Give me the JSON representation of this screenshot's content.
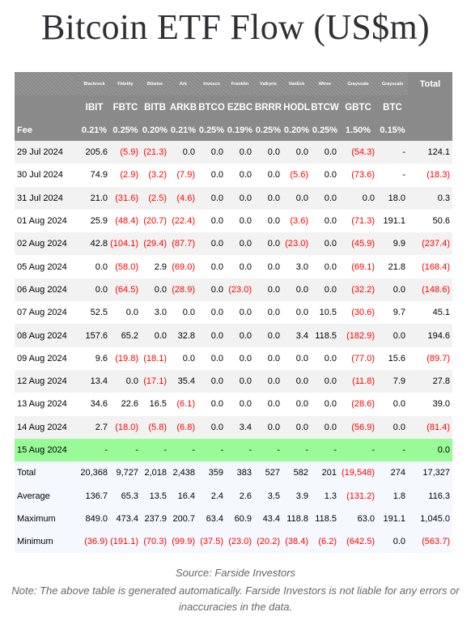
{
  "title": "Bitcoin ETF Flow (US$m)",
  "issuers": [
    "Blackrock",
    "Fidelity",
    "Bitwise",
    "Ark",
    "Invesco",
    "Franklin",
    "Valkyrie",
    "VanEck",
    "Wtree",
    "Grayscale",
    "Grayscale"
  ],
  "tickers": [
    "IBIT",
    "FBTC",
    "BITB",
    "ARKB",
    "BTCO",
    "EZBC",
    "BRRR",
    "HODL",
    "BTCW",
    "GBTC",
    "BTC"
  ],
  "total_label": "Total",
  "fee_label": "Fee",
  "fees": [
    "0.21%",
    "0.25%",
    "0.20%",
    "0.21%",
    "0.25%",
    "0.19%",
    "0.25%",
    "0.20%",
    "0.25%",
    "1.50%",
    "0.15%",
    ""
  ],
  "rows": [
    {
      "date": "29 Jul 2024",
      "values": [
        "205.6",
        "(5.9)",
        "(21.3)",
        "0.0",
        "0.0",
        "0.0",
        "0.0",
        "0.0",
        "0.0",
        "(54.3)",
        "-",
        "124.1"
      ]
    },
    {
      "date": "30 Jul 2024",
      "values": [
        "74.9",
        "(2.9)",
        "(3.2)",
        "(7.9)",
        "0.0",
        "0.0",
        "0.0",
        "(5.6)",
        "0.0",
        "(73.6)",
        "-",
        "(18.3)"
      ]
    },
    {
      "date": "31 Jul 2024",
      "values": [
        "21.0",
        "(31.6)",
        "(2.5)",
        "(4.6)",
        "0.0",
        "0.0",
        "0.0",
        "0.0",
        "0.0",
        "0.0",
        "18.0",
        "0.3"
      ]
    },
    {
      "date": "01 Aug 2024",
      "values": [
        "25.9",
        "(48.4)",
        "(20.7)",
        "(22.4)",
        "0.0",
        "0.0",
        "0.0",
        "(3.6)",
        "0.0",
        "(71.3)",
        "191.1",
        "50.6"
      ]
    },
    {
      "date": "02 Aug 2024",
      "values": [
        "42.8",
        "(104.1)",
        "(29.4)",
        "(87.7)",
        "0.0",
        "0.0",
        "0.0",
        "(23.0)",
        "0.0",
        "(45.9)",
        "9.9",
        "(237.4)"
      ]
    },
    {
      "date": "05 Aug 2024",
      "values": [
        "0.0",
        "(58.0)",
        "2.9",
        "(69.0)",
        "0.0",
        "0.0",
        "0.0",
        "3.0",
        "0.0",
        "(69.1)",
        "21.8",
        "(168.4)"
      ]
    },
    {
      "date": "06 Aug 2024",
      "values": [
        "0.0",
        "(64.5)",
        "0.0",
        "(28.9)",
        "0.0",
        "(23.0)",
        "0.0",
        "0.0",
        "0.0",
        "(32.2)",
        "0.0",
        "(148.6)"
      ]
    },
    {
      "date": "07 Aug 2024",
      "values": [
        "52.5",
        "0.0",
        "3.0",
        "0.0",
        "0.0",
        "0.0",
        "0.0",
        "0.0",
        "10.5",
        "(30.6)",
        "9.7",
        "45.1"
      ]
    },
    {
      "date": "08 Aug 2024",
      "values": [
        "157.6",
        "65.2",
        "0.0",
        "32.8",
        "0.0",
        "0.0",
        "0.0",
        "3.4",
        "118.5",
        "(182.9)",
        "0.0",
        "194.6"
      ]
    },
    {
      "date": "09 Aug 2024",
      "values": [
        "9.6",
        "(19.8)",
        "(18.1)",
        "0.0",
        "0.0",
        "0.0",
        "0.0",
        "0.0",
        "0.0",
        "(77.0)",
        "15.6",
        "(89.7)"
      ]
    },
    {
      "date": "12 Aug 2024",
      "values": [
        "13.4",
        "0.0",
        "(17.1)",
        "35.4",
        "0.0",
        "0.0",
        "0.0",
        "0.0",
        "0.0",
        "(11.8)",
        "7.9",
        "27.8"
      ]
    },
    {
      "date": "13 Aug 2024",
      "values": [
        "34.6",
        "22.6",
        "16.5",
        "(6.1)",
        "0.0",
        "0.0",
        "0.0",
        "0.0",
        "0.0",
        "(28.6)",
        "0.0",
        "39.0"
      ]
    },
    {
      "date": "14 Aug 2024",
      "values": [
        "2.7",
        "(18.0)",
        "(5.8)",
        "(6.8)",
        "0.0",
        "3.4",
        "0.0",
        "0.0",
        "0.0",
        "(56.9)",
        "0.0",
        "(81.4)"
      ]
    },
    {
      "date": "15 Aug 2024",
      "values": [
        "-",
        "-",
        "-",
        "-",
        "-",
        "-",
        "-",
        "-",
        "-",
        "-",
        "-",
        "0.0"
      ],
      "highlight": true
    }
  ],
  "summary": [
    {
      "label": "Total",
      "values": [
        "20,368",
        "9,727",
        "2,018",
        "2,438",
        "359",
        "383",
        "527",
        "582",
        "201",
        "(19,548)",
        "274",
        "17,327"
      ]
    },
    {
      "label": "Average",
      "values": [
        "136.7",
        "65.3",
        "13.5",
        "16.4",
        "2.4",
        "2.6",
        "3.5",
        "3.9",
        "1.3",
        "(131.2)",
        "1.8",
        "116.3"
      ]
    },
    {
      "label": "Maximum",
      "values": [
        "849.0",
        "473.4",
        "237.9",
        "200.7",
        "63.4",
        "60.9",
        "43.4",
        "118.8",
        "118.5",
        "63.0",
        "191.1",
        "1,045.0"
      ]
    },
    {
      "label": "Minimum",
      "values": [
        "(36.9)",
        "(191.1)",
        "(70.3)",
        "(99.9)",
        "(37.5)",
        "(23.0)",
        "(20.2)",
        "(38.4)",
        "(6.2)",
        "(642.5)",
        "0.0",
        "(563.7)"
      ]
    }
  ],
  "source": "Source: Farside Investors",
  "note": "Note: The above table is generated automatically. Farside Investors is not liable for any errors or inaccuracies in the data.",
  "colors": {
    "header_bg": "#8a8a8a",
    "negative": "#ff0000",
    "highlight_row": "#98fb98",
    "stripe": "#f2f2f2"
  }
}
